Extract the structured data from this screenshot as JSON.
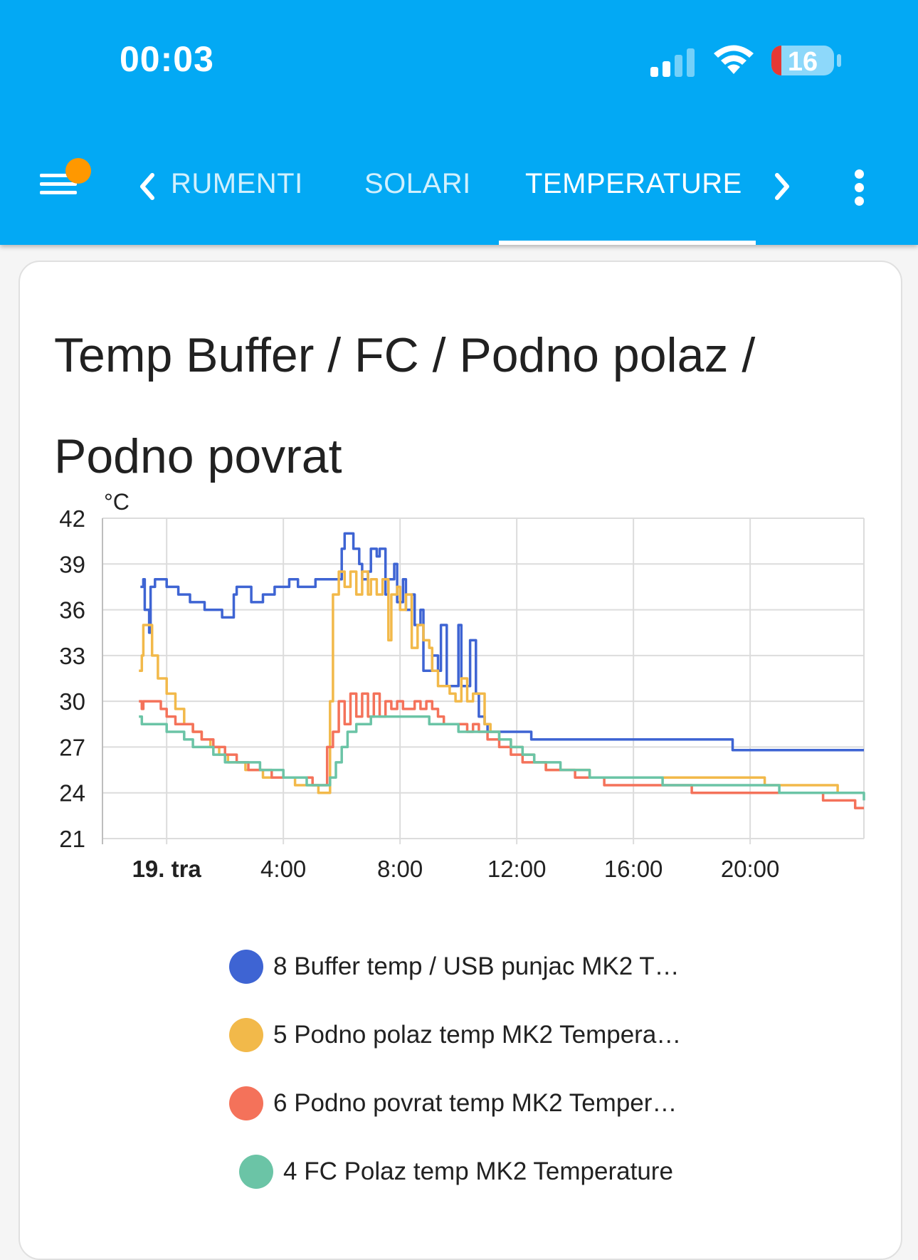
{
  "status_bar": {
    "time": "00:03",
    "battery": "16"
  },
  "tabs": [
    {
      "label": "RUMENTI",
      "active": false
    },
    {
      "label": "SOLARI",
      "active": false
    },
    {
      "label": "TEMPERATURE",
      "active": true
    }
  ],
  "icons": {
    "menu": "menu-icon",
    "notification": "notification-dot",
    "prev": "chevron-left-icon",
    "next": "chevron-right-icon",
    "more": "more-vert-icon"
  },
  "colors": {
    "header": "#03a9f4",
    "notification": "#ff9800",
    "battery_low": "#e53935"
  },
  "card": {
    "title_line1": "Temp Buffer / FC / Podno polaz /",
    "title_line2": "Podno povrat"
  },
  "chart_data": {
    "type": "line",
    "y_unit": "°C",
    "ylim": [
      21,
      42
    ],
    "y_ticks": [
      "42",
      "39",
      "36",
      "33",
      "30",
      "27",
      "24",
      "21"
    ],
    "x_range_hours": [
      -2.2,
      23.9
    ],
    "x_ticks": [
      {
        "h": 0,
        "label": "19. tra",
        "bold": true
      },
      {
        "h": 4,
        "label": "4:00"
      },
      {
        "h": 8,
        "label": "8:00"
      },
      {
        "h": 12,
        "label": "12:00"
      },
      {
        "h": 16,
        "label": "16:00"
      },
      {
        "h": 20,
        "label": "20:00"
      }
    ],
    "grid": true,
    "legend_position": "bottom",
    "series": [
      {
        "name": "8 Buffer temp / USB punjac MK2 T…",
        "color": "#3e64d3",
        "x": [
          -0.9,
          -0.8,
          -0.75,
          -0.6,
          -0.55,
          -0.4,
          -0.35,
          -0.1,
          0.0,
          0.3,
          0.4,
          0.7,
          0.8,
          1.2,
          1.3,
          1.8,
          1.9,
          2.3,
          2.4,
          2.8,
          2.9,
          3.2,
          3.3,
          3.6,
          3.7,
          4.1,
          4.2,
          4.4,
          4.5,
          5.0,
          5.1,
          5.6,
          5.7,
          6.0,
          6.1,
          6.3,
          6.4,
          6.6,
          6.7,
          6.9,
          7.0,
          7.2,
          7.3,
          7.5,
          7.6,
          7.8,
          7.9,
          8.1,
          8.2,
          8.4,
          8.5,
          8.7,
          8.8,
          9.0,
          9.1,
          9.3,
          9.4,
          9.6,
          9.7,
          10.0,
          10.1,
          10.3,
          10.4,
          10.6,
          10.7,
          10.9,
          11.0,
          11.2,
          11.3,
          12.4,
          12.5,
          14.0,
          14.2,
          19.3,
          19.4,
          21.0,
          23.2,
          23.9
        ],
        "y": [
          37.5,
          38,
          36,
          34.5,
          37.5,
          38,
          38,
          38,
          37.5,
          37.5,
          37,
          37,
          36.5,
          36.5,
          36,
          36,
          35.5,
          37,
          37.5,
          37.5,
          36.5,
          36.5,
          37,
          37,
          37.5,
          37.5,
          38,
          38,
          37.5,
          37.5,
          38,
          38,
          38,
          40,
          41,
          41,
          40,
          39,
          38,
          38.5,
          40,
          39.5,
          40,
          37,
          38,
          39,
          36.5,
          38,
          36,
          37,
          35,
          36,
          32,
          32,
          33,
          32,
          35,
          31,
          31,
          35,
          31,
          31,
          34,
          30.5,
          29,
          28.5,
          28,
          28,
          28,
          28,
          27.5,
          27.5,
          27.5,
          27.5,
          26.8,
          26.8,
          26.8,
          26.8
        ]
      },
      {
        "name": "5 Podno polaz temp MK2 Tempera…",
        "color": "#f2b94a",
        "x": [
          -0.95,
          -0.85,
          -0.8,
          -0.7,
          -0.5,
          -0.3,
          0,
          0.3,
          0.6,
          0.9,
          1.2,
          1.5,
          1.8,
          2.1,
          2.4,
          2.7,
          3.0,
          3.3,
          3.6,
          4.0,
          4.4,
          4.8,
          5.2,
          5.5,
          5.6,
          5.7,
          5.9,
          6.1,
          6.3,
          6.5,
          6.7,
          6.9,
          7.0,
          7.2,
          7.4,
          7.6,
          7.7,
          7.9,
          8.0,
          8.2,
          8.4,
          8.6,
          8.8,
          9.0,
          9.1,
          9.3,
          9.5,
          9.7,
          9.9,
          10.1,
          10.3,
          10.5,
          10.7,
          10.9,
          11.1,
          11.4,
          11.8,
          12.2,
          12.6,
          13.0,
          13.5,
          14.0,
          14.5,
          15.0,
          15.5,
          16.0,
          17.0,
          18.0,
          19.0,
          20.5,
          21.0,
          22.5,
          23.0,
          23.9
        ],
        "y": [
          32,
          33,
          35,
          35,
          33,
          31.5,
          30.5,
          29.5,
          28.5,
          28,
          27.5,
          27,
          26.5,
          26,
          26,
          25.5,
          25.5,
          25,
          25,
          25,
          24.5,
          24.5,
          24,
          24,
          30,
          37,
          38.5,
          37.5,
          38.5,
          37,
          38.5,
          37,
          38,
          37,
          38,
          34,
          37,
          37.5,
          36,
          37,
          33.5,
          35,
          34,
          33.5,
          32,
          31,
          31,
          30.5,
          30,
          31.5,
          30,
          30.5,
          30.5,
          28.5,
          28,
          27.5,
          27,
          26.5,
          26,
          25.5,
          25.5,
          25.5,
          25,
          25,
          25,
          25,
          25,
          25,
          25,
          24.5,
          24.5,
          24.5,
          24,
          24
        ]
      },
      {
        "name": "6 Podno povrat temp MK2 Temper…",
        "color": "#f4725a",
        "x": [
          -0.95,
          -0.85,
          -0.8,
          -0.6,
          -0.4,
          -0.2,
          0,
          0.3,
          0.6,
          0.9,
          1.2,
          1.6,
          2.0,
          2.4,
          2.8,
          3.2,
          3.6,
          4.0,
          4.5,
          5.0,
          5.4,
          5.5,
          5.7,
          5.9,
          6.1,
          6.3,
          6.5,
          6.7,
          6.9,
          7.1,
          7.3,
          7.5,
          7.7,
          7.9,
          8.1,
          8.3,
          8.5,
          8.7,
          8.9,
          9.1,
          9.3,
          9.5,
          9.7,
          9.9,
          10.1,
          10.3,
          10.5,
          10.7,
          11.0,
          11.4,
          11.8,
          12.2,
          12.6,
          13.0,
          13.5,
          14.0,
          14.5,
          15.0,
          15.5,
          16.0,
          17.0,
          18.0,
          19.0,
          20.0,
          21.0,
          22.5,
          23.0,
          23.6,
          23.9
        ],
        "y": [
          30,
          29.5,
          30,
          30,
          30,
          29.5,
          29,
          28.5,
          28.5,
          28,
          27.5,
          27,
          26.5,
          26,
          25.5,
          25.5,
          25,
          25,
          25,
          24.5,
          24.5,
          27,
          28,
          30,
          28.5,
          30.5,
          29,
          30.5,
          29,
          30.5,
          29,
          30,
          29.5,
          30,
          29.5,
          29.5,
          30,
          29.5,
          30,
          29.5,
          29,
          28.5,
          28.5,
          28.5,
          28.5,
          28,
          28.5,
          28,
          27.5,
          27,
          26.5,
          26,
          26,
          25.5,
          25.5,
          25,
          25,
          24.5,
          24.5,
          24.5,
          24.5,
          24,
          24,
          24,
          24,
          23.5,
          23.5,
          23,
          23
        ]
      },
      {
        "name": "4 FC Polaz temp MK2 Temperature",
        "color": "#6bc4a6",
        "x": [
          -0.95,
          -0.85,
          -0.8,
          -0.5,
          -0.2,
          0,
          0.3,
          0.6,
          0.9,
          1.2,
          1.6,
          2.0,
          2.4,
          2.8,
          3.2,
          3.6,
          4.0,
          4.4,
          4.8,
          5.2,
          5.5,
          5.6,
          5.8,
          6.0,
          6.2,
          6.5,
          7.0,
          7.5,
          8.0,
          8.5,
          9.0,
          9.5,
          10.0,
          10.5,
          11.0,
          11.4,
          11.8,
          12.2,
          12.6,
          13.0,
          13.5,
          14.0,
          14.5,
          15.0,
          15.5,
          16.0,
          17.0,
          18.0,
          19.0,
          20.0,
          21.0,
          22.0,
          23.0,
          23.9
        ],
        "y": [
          29,
          28.5,
          28.5,
          28.5,
          28.5,
          28,
          28,
          27.5,
          27,
          27,
          26.5,
          26,
          26,
          26,
          25.5,
          25.5,
          25,
          25,
          24.5,
          24.5,
          24.5,
          25,
          26,
          27,
          28,
          28.5,
          29,
          29,
          29,
          29,
          28.5,
          28.5,
          28,
          28,
          28,
          27.5,
          27,
          26.5,
          26,
          26,
          25.5,
          25.5,
          25,
          25,
          25,
          25,
          24.5,
          24.5,
          24.5,
          24.5,
          24,
          24,
          24,
          23.5
        ]
      }
    ]
  }
}
